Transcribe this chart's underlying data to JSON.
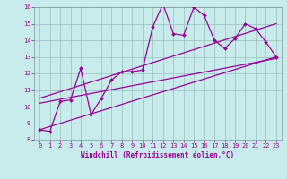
{
  "xlabel": "Windchill (Refroidissement éolien,°C)",
  "bg_color": "#c8ecec",
  "line_color": "#990099",
  "x_data": [
    0,
    1,
    2,
    3,
    4,
    5,
    6,
    7,
    8,
    9,
    10,
    11,
    12,
    13,
    14,
    15,
    16,
    17,
    18,
    19,
    20,
    21,
    22,
    23
  ],
  "y_main": [
    8.6,
    8.5,
    10.3,
    10.4,
    12.3,
    9.5,
    10.5,
    11.6,
    12.1,
    12.1,
    12.2,
    14.8,
    16.2,
    14.4,
    14.3,
    16.0,
    15.5,
    14.0,
    13.5,
    14.1,
    15.0,
    14.7,
    13.9,
    13.0
  ],
  "trend1_x": [
    0,
    23
  ],
  "trend1_y": [
    8.6,
    13.0
  ],
  "trend2_x": [
    0,
    23
  ],
  "trend2_y": [
    10.2,
    12.9
  ],
  "trend3_x": [
    0,
    23
  ],
  "trend3_y": [
    10.5,
    15.0
  ],
  "ylim_min": 8,
  "ylim_max": 16,
  "xlim_min": -0.5,
  "xlim_max": 23.5,
  "yticks": [
    8,
    9,
    10,
    11,
    12,
    13,
    14,
    15,
    16
  ],
  "xticks": [
    0,
    1,
    2,
    3,
    4,
    5,
    6,
    7,
    8,
    9,
    10,
    11,
    12,
    13,
    14,
    15,
    16,
    17,
    18,
    19,
    20,
    21,
    22,
    23
  ],
  "font_color": "#990099",
  "grid_color": "#9bbdbd",
  "tick_fontsize": 5.0,
  "xlabel_fontsize": 5.5
}
